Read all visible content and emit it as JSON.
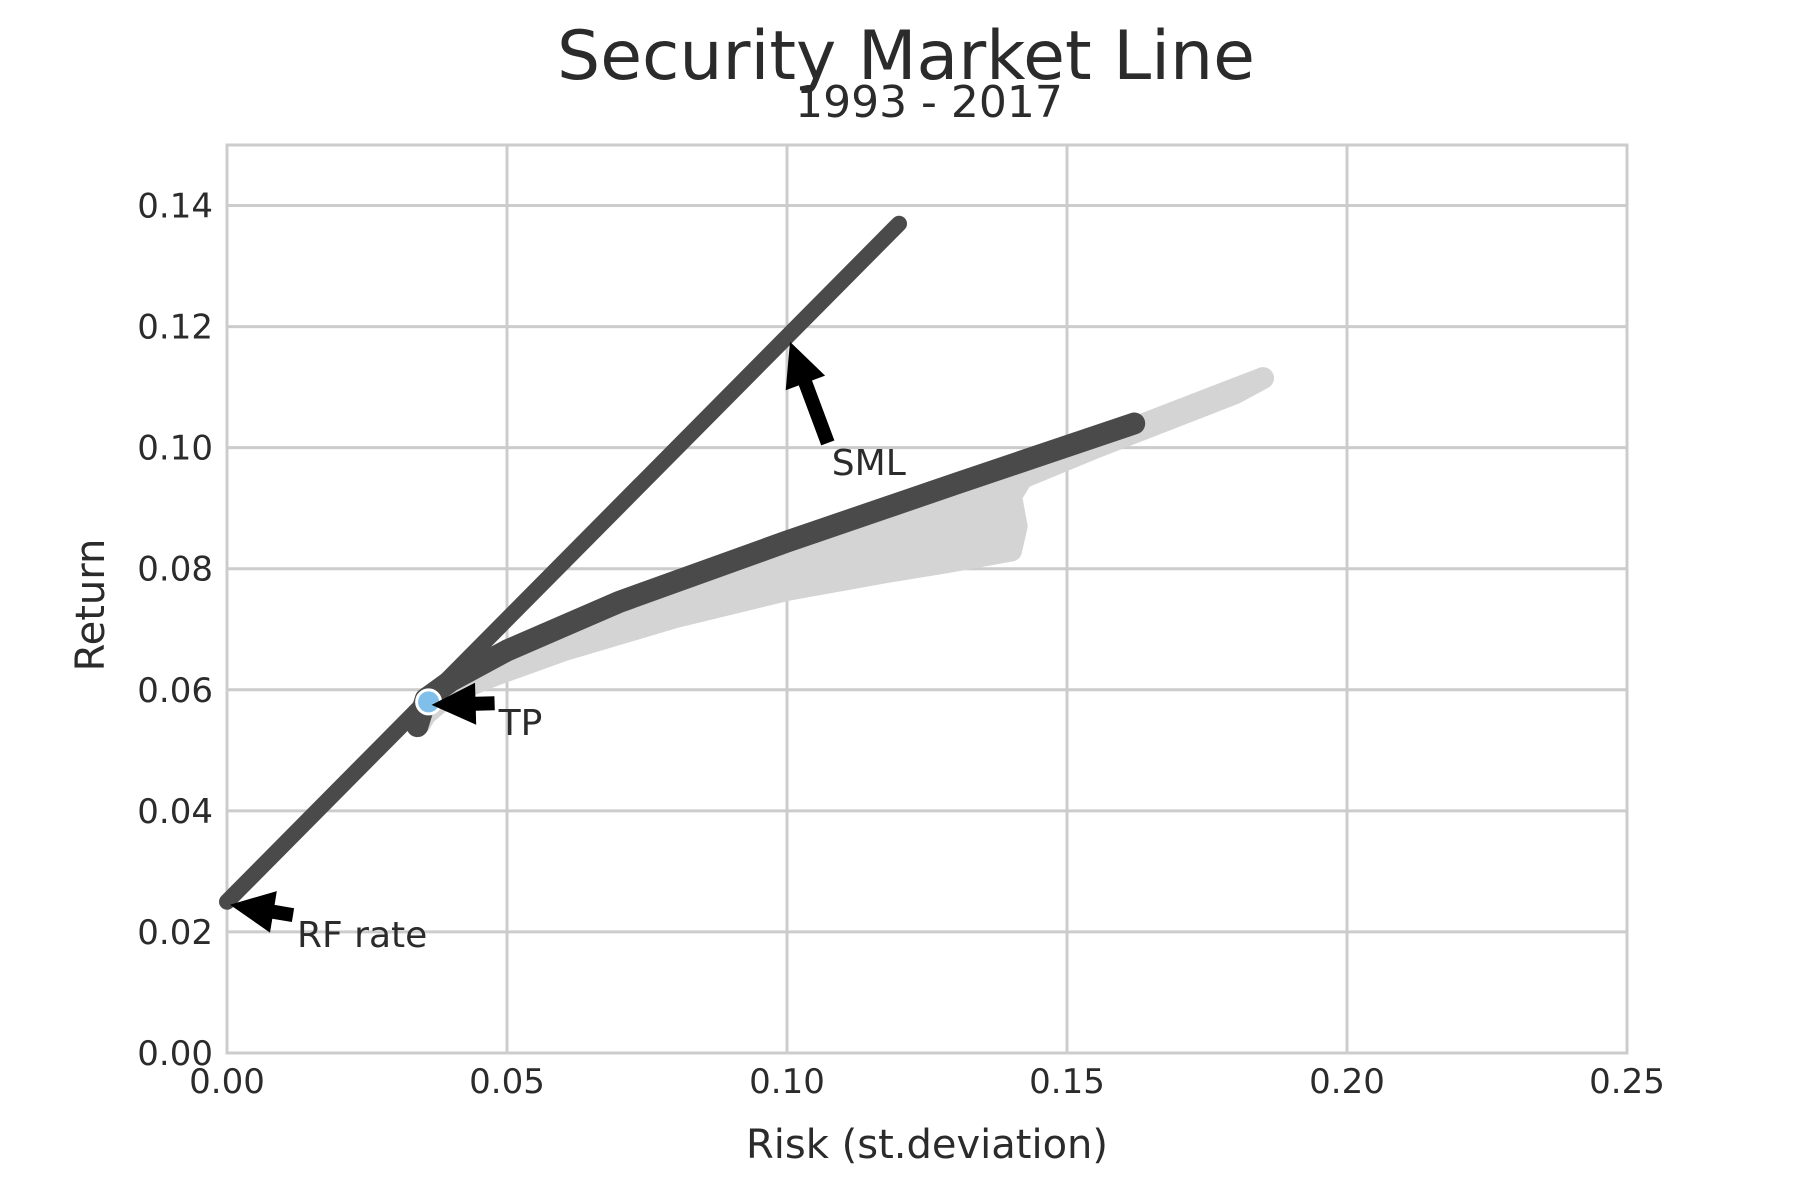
{
  "chart_data": {
    "type": "line",
    "title": "Security Market Line",
    "subtitle": "1993 - 2017",
    "xlabel": "Risk (st.deviation)",
    "ylabel": "Return",
    "xlim": [
      0.0,
      0.25
    ],
    "ylim": [
      0.0,
      0.15
    ],
    "xticks": [
      "0.00",
      "0.05",
      "0.10",
      "0.15",
      "0.20",
      "0.25"
    ],
    "yticks": [
      "0.00",
      "0.02",
      "0.04",
      "0.06",
      "0.08",
      "0.10",
      "0.12",
      "0.14"
    ],
    "grid": true,
    "colors": {
      "line": "#4a4a4a",
      "cloud": "#d4d4d4",
      "tangency": "#7fbfe9",
      "arrow": "#000000",
      "grid": "#cccccc",
      "text": "#2b2b2b"
    },
    "series": [
      {
        "kind": "sml",
        "points": [
          [
            0.0,
            0.025
          ],
          [
            0.12,
            0.137
          ]
        ]
      },
      {
        "kind": "efficient-frontier",
        "points": [
          [
            0.034,
            0.054
          ],
          [
            0.0355,
            0.0585
          ],
          [
            0.04,
            0.0615
          ],
          [
            0.05,
            0.0665
          ],
          [
            0.07,
            0.0745
          ],
          [
            0.1,
            0.0845
          ],
          [
            0.13,
            0.094
          ],
          [
            0.162,
            0.104
          ]
        ]
      },
      {
        "kind": "portfolio-cloud",
        "points": [
          [
            0.0345,
            0.0545
          ],
          [
            0.036,
            0.058
          ],
          [
            0.045,
            0.063
          ],
          [
            0.07,
            0.072
          ],
          [
            0.1,
            0.0825
          ],
          [
            0.125,
            0.091
          ],
          [
            0.15,
            0.099
          ],
          [
            0.185,
            0.1115
          ],
          [
            0.18,
            0.109
          ],
          [
            0.155,
            0.1
          ],
          [
            0.142,
            0.095
          ],
          [
            0.14,
            0.092
          ],
          [
            0.141,
            0.087
          ],
          [
            0.14,
            0.083
          ],
          [
            0.128,
            0.081
          ],
          [
            0.118,
            0.0795
          ],
          [
            0.1,
            0.0765
          ],
          [
            0.08,
            0.072
          ],
          [
            0.06,
            0.0665
          ],
          [
            0.048,
            0.0625
          ],
          [
            0.04,
            0.0595
          ],
          [
            0.0355,
            0.056
          ]
        ]
      }
    ],
    "tangency_point": [
      0.036,
      0.058
    ],
    "annotations": [
      {
        "text": "SML",
        "xy": [
          0.1,
          0.118
        ],
        "text_xy": [
          0.108,
          0.0955
        ]
      },
      {
        "text": "TP",
        "xy": [
          0.036,
          0.058
        ],
        "text_xy": [
          0.0485,
          0.0525
        ]
      },
      {
        "text": "RF rate",
        "xy": [
          0.0,
          0.025
        ],
        "text_xy": [
          0.0125,
          0.0175
        ]
      }
    ]
  }
}
